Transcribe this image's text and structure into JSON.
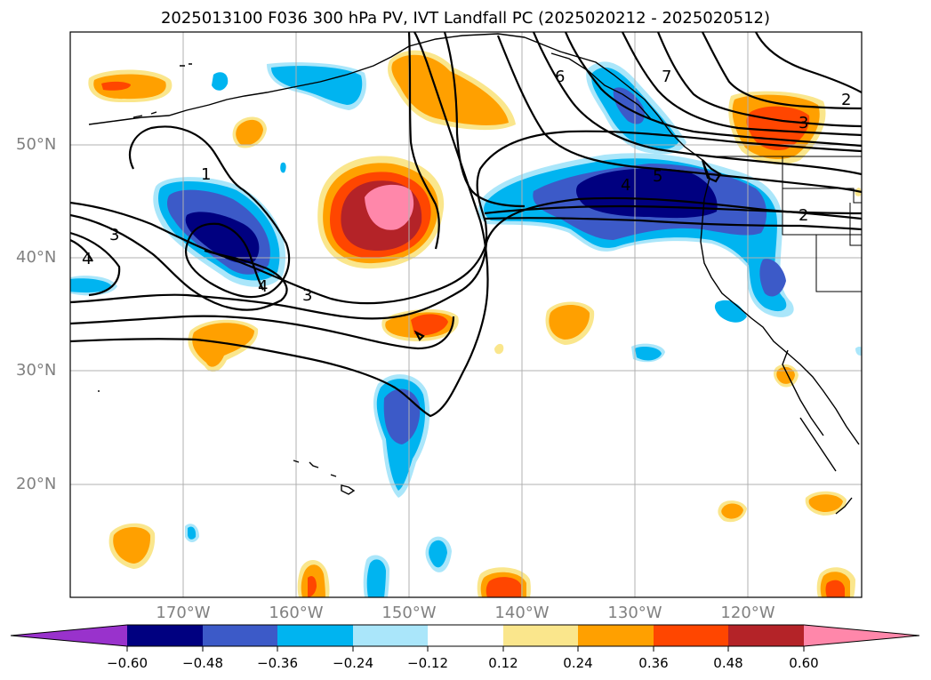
{
  "title": "2025013100 F036 300 hPa PV, IVT Landfall PC (2025020212 - 2025020512)",
  "lat_labels": [
    "50°N",
    "40°N",
    "30°N",
    "20°N"
  ],
  "lon_labels": [
    "170°W",
    "160°W",
    "150°W",
    "140°W",
    "130°W",
    "120°W"
  ],
  "colorbar": {
    "ticks": [
      "−0.60",
      "−0.48",
      "−0.36",
      "−0.24",
      "−0.12",
      "0.12",
      "0.24",
      "0.36",
      "0.48",
      "0.60"
    ],
    "colors": [
      "#9932cc",
      "#000080",
      "#3c5ac8",
      "#00b4f0",
      "#aae6fa",
      "#ffffff",
      "#fae68c",
      "#ffa000",
      "#ff4600",
      "#b42328",
      "#ff87aa"
    ]
  },
  "contour_labels": [
    "1",
    "3",
    "4",
    "4",
    "3",
    "6",
    "7",
    "2",
    "3",
    "4",
    "5",
    "2"
  ]
}
